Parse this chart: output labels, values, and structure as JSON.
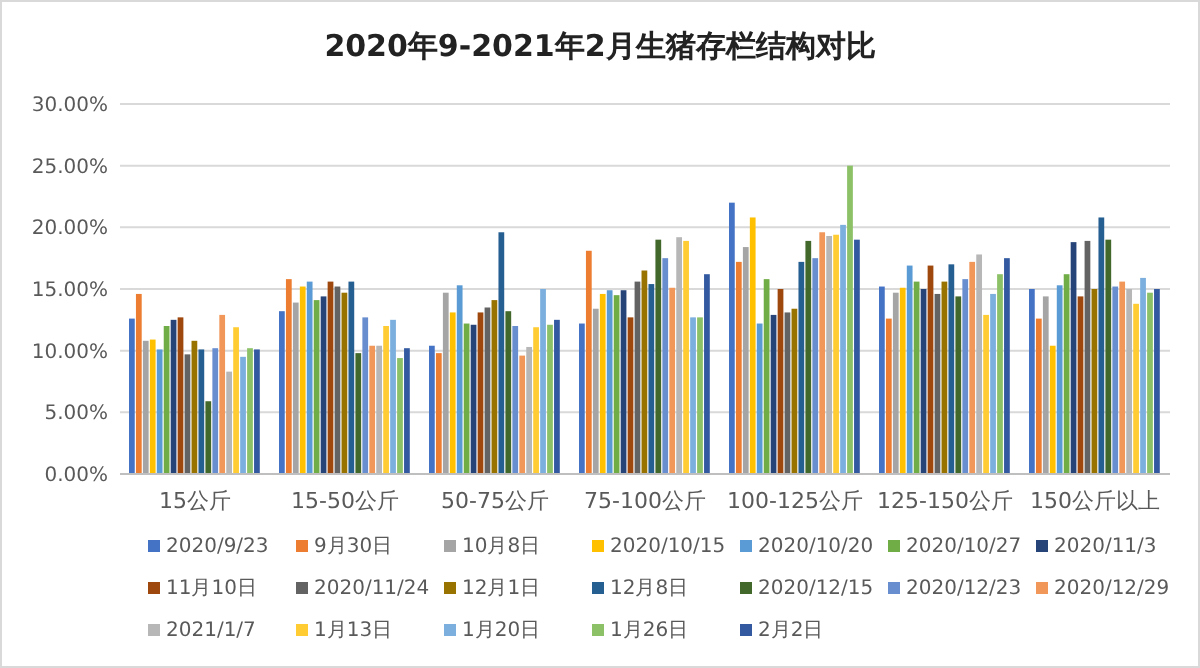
{
  "chart_data": {
    "type": "bar",
    "title": "2020年9-2021年2月生猪存栏结构对比",
    "categories": [
      "15公斤",
      "15-50公斤",
      "50-75公斤",
      "75-100公斤",
      "100-125公斤",
      "125-150公斤",
      "150公斤以上"
    ],
    "ylim": [
      0,
      30
    ],
    "yticks": [
      {
        "value": 0,
        "label": "0.00%"
      },
      {
        "value": 5,
        "label": "5.00%"
      },
      {
        "value": 10,
        "label": "10.00%"
      },
      {
        "value": 15,
        "label": "15.00%"
      },
      {
        "value": 20,
        "label": "20.00%"
      },
      {
        "value": 25,
        "label": "25.00%"
      },
      {
        "value": 30,
        "label": "30.00%"
      }
    ],
    "grid": "y",
    "legend": "bottom",
    "series": [
      {
        "name": "2020/9/23",
        "color": "#4472c4",
        "values": [
          12.6,
          13.2,
          10.4,
          12.2,
          22.0,
          15.2,
          15.0
        ]
      },
      {
        "name": "9月30日",
        "color": "#ed7d31",
        "values": [
          14.6,
          15.8,
          9.8,
          18.1,
          17.2,
          12.6,
          12.6
        ]
      },
      {
        "name": "10月8日",
        "color": "#a5a5a5",
        "values": [
          10.8,
          13.9,
          14.7,
          13.4,
          18.4,
          14.7,
          14.4
        ]
      },
      {
        "name": "2020/10/15",
        "color": "#ffc000",
        "values": [
          10.9,
          15.2,
          13.1,
          14.6,
          20.8,
          15.1,
          10.4
        ]
      },
      {
        "name": "2020/10/20",
        "color": "#5b9bd5",
        "values": [
          10.1,
          15.6,
          15.3,
          14.9,
          12.2,
          16.9,
          15.3
        ]
      },
      {
        "name": "2020/10/27",
        "color": "#70ad47",
        "values": [
          12.0,
          14.1,
          12.2,
          14.5,
          15.8,
          15.6,
          16.2
        ]
      },
      {
        "name": "2020/11/3",
        "color": "#264478",
        "values": [
          12.5,
          14.4,
          12.1,
          14.9,
          12.9,
          15.0,
          18.8
        ]
      },
      {
        "name": "11月10日",
        "color": "#9e480e",
        "values": [
          12.7,
          15.6,
          13.1,
          12.7,
          15.0,
          16.9,
          14.4
        ]
      },
      {
        "name": "2020/11/24",
        "color": "#636363",
        "values": [
          9.7,
          15.2,
          13.5,
          15.6,
          13.1,
          14.6,
          18.9
        ]
      },
      {
        "name": "12月1日",
        "color": "#997300",
        "values": [
          10.8,
          14.7,
          14.1,
          16.5,
          13.4,
          15.6,
          15.0
        ]
      },
      {
        "name": "12月8日",
        "color": "#255e91",
        "values": [
          10.1,
          15.6,
          19.6,
          15.4,
          17.2,
          17.0,
          20.8
        ]
      },
      {
        "name": "2020/12/15",
        "color": "#43682b",
        "values": [
          5.9,
          9.8,
          13.2,
          19.0,
          18.9,
          14.4,
          19.0
        ]
      },
      {
        "name": "2020/12/23",
        "color": "#698ed0",
        "values": [
          10.2,
          12.7,
          12.0,
          17.5,
          17.5,
          15.8,
          15.2
        ]
      },
      {
        "name": "2020/12/29",
        "color": "#f1975a",
        "values": [
          12.9,
          10.4,
          9.6,
          15.1,
          19.6,
          17.2,
          15.6
        ]
      },
      {
        "name": "2021/1/7",
        "color": "#b7b7b7",
        "values": [
          8.3,
          10.4,
          10.3,
          19.2,
          19.3,
          17.8,
          15.0
        ]
      },
      {
        "name": "1月13日",
        "color": "#ffcd33",
        "values": [
          11.9,
          12.0,
          11.9,
          18.9,
          19.4,
          12.9,
          13.8
        ]
      },
      {
        "name": "1月20日",
        "color": "#7cafdd",
        "values": [
          9.5,
          12.5,
          15.0,
          12.7,
          20.2,
          14.6,
          15.9
        ]
      },
      {
        "name": "1月26日",
        "color": "#8cc168",
        "values": [
          10.2,
          9.4,
          12.1,
          12.7,
          25.0,
          16.2,
          14.7
        ]
      },
      {
        "name": "2月2日",
        "color": "#335aa1",
        "values": [
          10.1,
          10.2,
          12.5,
          16.2,
          19.0,
          17.5,
          15.0
        ]
      }
    ]
  }
}
